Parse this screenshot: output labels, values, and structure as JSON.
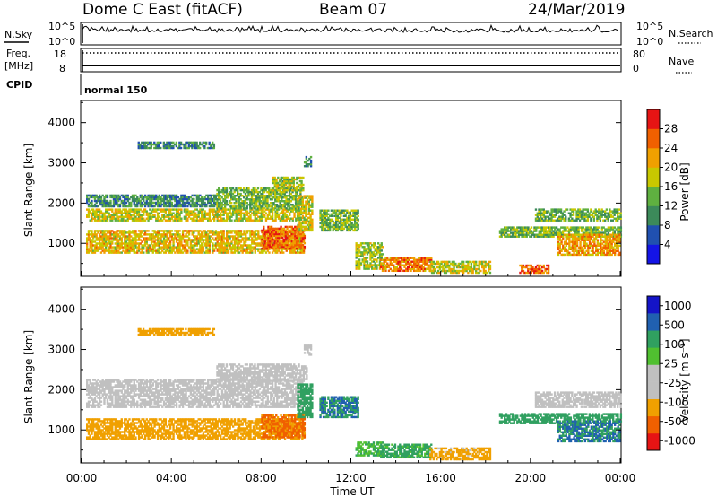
{
  "header": {
    "station": "Dome C East (fitACF)",
    "beam": "Beam 07",
    "date": "24/Mar/2019"
  },
  "panels": {
    "nsky_label": "N.Sky",
    "nsearch_label": "N.Search",
    "nsky_ticks": [
      "10^5",
      "10^0"
    ],
    "freq_label_1": "Freq.",
    "freq_label_2": "[MHz]",
    "nave_label": "Nave",
    "freq_ticks": [
      "18",
      "8"
    ],
    "nave_ticks": [
      "80",
      "0"
    ],
    "cpid_label": "CPID",
    "cpid_value": "normal 150"
  },
  "colors": {
    "power": [
      "#1414e6",
      "#2050b0",
      "#3c8a5a",
      "#5fb040",
      "#c8c800",
      "#f0a000",
      "#f06000",
      "#e61414"
    ],
    "velocity": [
      "#e61414",
      "#f06000",
      "#f0a000",
      "#c0c0c0",
      "#c0c0c0",
      "#50c030",
      "#30a060",
      "#2060b0",
      "#1414c8"
    ],
    "ground_scatter": "#c0c0c0"
  },
  "chart_data": [
    {
      "type": "heatmap",
      "title": "Power",
      "ylabel": "Slant Range [km]",
      "xlabel": "",
      "x_ticks": [],
      "y_ticks": [
        "1000",
        "2000",
        "3000",
        "4000"
      ],
      "ylim": [
        180,
        4550
      ],
      "xlim_hours": [
        0,
        24
      ],
      "colorbar_label": "Power [dB]",
      "colorbar_ticks": [
        "4",
        "8",
        "12",
        "16",
        "20",
        "24",
        "28"
      ],
      "colorbar_range": [
        0,
        32
      ],
      "regions": [
        {
          "h0": 0.2,
          "h1": 6.0,
          "r0": 1900,
          "r1": 2200,
          "power": 10
        },
        {
          "h0": 0.2,
          "h1": 9.6,
          "r0": 1550,
          "r1": 1850,
          "power": 18
        },
        {
          "h0": 6.0,
          "h1": 9.8,
          "r0": 1850,
          "r1": 2350,
          "power": 14
        },
        {
          "h0": 8.5,
          "h1": 9.9,
          "r0": 2300,
          "r1": 2650,
          "power": 16
        },
        {
          "h0": 0.2,
          "h1": 9.9,
          "r0": 750,
          "r1": 1300,
          "power": 20
        },
        {
          "h0": 8.0,
          "h1": 9.9,
          "r0": 850,
          "r1": 1400,
          "power": 26
        },
        {
          "h0": 9.6,
          "h1": 10.3,
          "r0": 1300,
          "r1": 2200,
          "power": 18
        },
        {
          "h0": 10.6,
          "h1": 12.3,
          "r0": 1300,
          "r1": 1800,
          "power": 14
        },
        {
          "h0": 12.2,
          "h1": 13.4,
          "r0": 350,
          "r1": 1000,
          "power": 16
        },
        {
          "h0": 13.3,
          "h1": 15.6,
          "r0": 300,
          "r1": 650,
          "power": 24
        },
        {
          "h0": 15.5,
          "h1": 18.2,
          "r0": 250,
          "r1": 550,
          "power": 18
        },
        {
          "h0": 18.6,
          "h1": 24.0,
          "r0": 1150,
          "r1": 1400,
          "power": 14
        },
        {
          "h0": 20.2,
          "h1": 24.0,
          "r0": 1550,
          "r1": 1850,
          "power": 14
        },
        {
          "h0": 21.2,
          "h1": 24.0,
          "r0": 700,
          "r1": 1200,
          "power": 22
        },
        {
          "h0": 19.5,
          "h1": 20.8,
          "r0": 250,
          "r1": 450,
          "power": 26
        },
        {
          "h0": 2.5,
          "h1": 5.9,
          "r0": 3350,
          "r1": 3500,
          "power": 10
        },
        {
          "h0": 9.9,
          "h1": 10.2,
          "r0": 2900,
          "r1": 3150,
          "power": 10
        }
      ]
    },
    {
      "type": "heatmap",
      "title": "Velocity",
      "ylabel": "Slant Range [km]",
      "xlabel": "Time UT",
      "x_ticks": [
        "00:00",
        "04:00",
        "08:00",
        "12:00",
        "16:00",
        "20:00",
        "00:00"
      ],
      "y_ticks": [
        "1000",
        "2000",
        "3000",
        "4000"
      ],
      "ylim": [
        180,
        4550
      ],
      "xlim_hours": [
        0,
        24
      ],
      "colorbar_label": "Velocity [m s⁻¹]",
      "colorbar_ticks": [
        "1000",
        "500",
        "100",
        "25",
        "-25",
        "-100",
        "-500",
        "-1000"
      ],
      "regions": [
        {
          "h0": 0.2,
          "h1": 9.8,
          "r0": 1550,
          "r1": 2250,
          "vel": 0,
          "gs": true
        },
        {
          "h0": 6.0,
          "h1": 10.0,
          "r0": 2200,
          "r1": 2650,
          "vel": 0,
          "gs": true
        },
        {
          "h0": 0.2,
          "h1": 9.9,
          "r0": 750,
          "r1": 1250,
          "vel": -150
        },
        {
          "h0": 8.0,
          "h1": 9.9,
          "r0": 800,
          "r1": 1350,
          "vel": -400
        },
        {
          "h0": 9.6,
          "h1": 10.3,
          "r0": 1300,
          "r1": 2150,
          "vel": 150
        },
        {
          "h0": 10.6,
          "h1": 12.3,
          "r0": 1300,
          "r1": 1800,
          "vel": 300
        },
        {
          "h0": 12.2,
          "h1": 13.4,
          "r0": 350,
          "r1": 700,
          "vel": 60
        },
        {
          "h0": 13.3,
          "h1": 15.6,
          "r0": 300,
          "r1": 650,
          "vel": 80
        },
        {
          "h0": 15.5,
          "h1": 18.2,
          "r0": 250,
          "r1": 550,
          "vel": -100
        },
        {
          "h0": 18.6,
          "h1": 24.0,
          "r0": 1150,
          "r1": 1400,
          "vel": 200
        },
        {
          "h0": 20.2,
          "h1": 24.0,
          "r0": 1550,
          "r1": 1950,
          "vel": 0,
          "gs": true
        },
        {
          "h0": 21.2,
          "h1": 24.0,
          "r0": 700,
          "r1": 1200,
          "vel": 300
        },
        {
          "h0": 2.5,
          "h1": 5.9,
          "r0": 3350,
          "r1": 3500,
          "vel": -150
        },
        {
          "h0": 9.9,
          "h1": 10.2,
          "r0": 2850,
          "r1": 3100,
          "vel": 0,
          "gs": true
        }
      ]
    }
  ]
}
